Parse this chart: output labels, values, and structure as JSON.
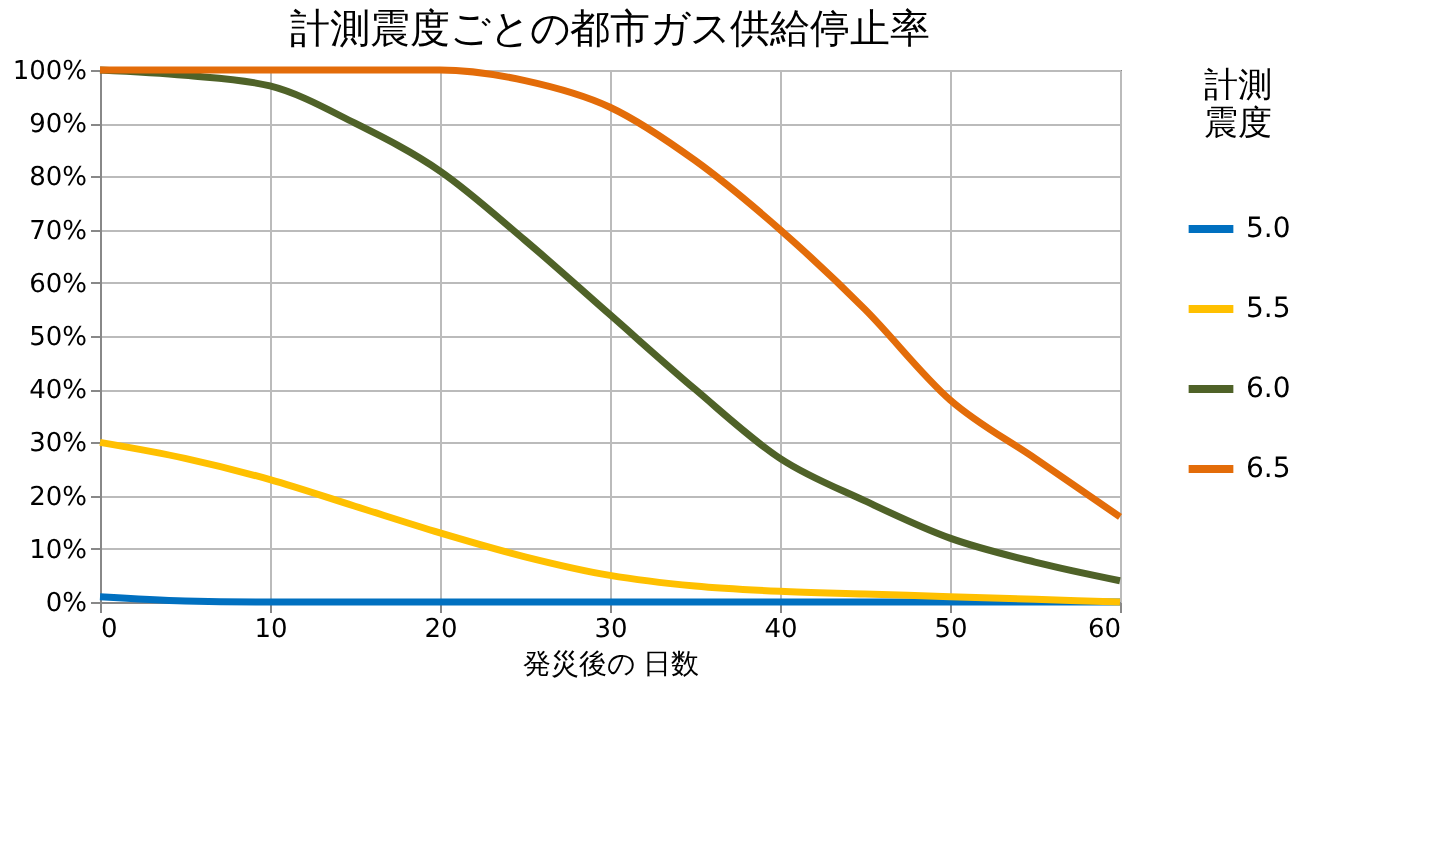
{
  "chart_data": {
    "type": "line",
    "title": "計測震度ごとの都市ガス供給停止率",
    "xlabel": "発災後の 日数",
    "legend_title": "計測震度",
    "x": [
      0,
      5,
      10,
      15,
      20,
      25,
      30,
      35,
      40,
      45,
      50,
      55,
      60
    ],
    "series": [
      {
        "name": "5.0",
        "color": "#0070c0",
        "values": [
          1,
          0.2,
          0,
          0,
          0,
          0,
          0,
          0,
          0,
          0,
          0,
          0,
          0
        ]
      },
      {
        "name": "5.5",
        "color": "#ffc000",
        "values": [
          30,
          27,
          23,
          18,
          13,
          8.5,
          5,
          3,
          2,
          1.5,
          1,
          0.5,
          0
        ]
      },
      {
        "name": "6.0",
        "color": "#4f6228",
        "values": [
          100,
          99,
          97,
          90,
          81,
          68,
          54,
          40,
          27,
          19,
          12,
          7.5,
          4
        ]
      },
      {
        "name": "6.5",
        "color": "#e36c09",
        "values": [
          100,
          100,
          100,
          100,
          100,
          98,
          93,
          83,
          70,
          55,
          38,
          27,
          16
        ]
      }
    ],
    "xlim": [
      0,
      60
    ],
    "xticks": [
      0,
      10,
      20,
      30,
      40,
      50,
      60
    ],
    "ylim": [
      0,
      100
    ],
    "yticks": [
      {
        "value": 0,
        "label": "0%"
      },
      {
        "value": 10,
        "label": "10%"
      },
      {
        "value": 20,
        "label": "20%"
      },
      {
        "value": 30,
        "label": "30%"
      },
      {
        "value": 40,
        "label": "40%"
      },
      {
        "value": 50,
        "label": "50%"
      },
      {
        "value": 60,
        "label": "60%"
      },
      {
        "value": 70,
        "label": "70%"
      },
      {
        "value": 80,
        "label": "80%"
      },
      {
        "value": 90,
        "label": "90%"
      },
      {
        "value": 100,
        "label": "100%"
      }
    ],
    "grid": true,
    "legend": "right",
    "marker": "none",
    "line_style": "solid"
  }
}
